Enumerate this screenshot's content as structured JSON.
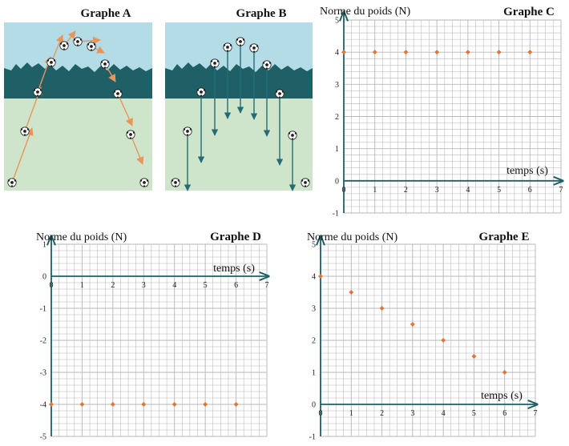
{
  "panels": {
    "a": {
      "title": "Graphe A"
    },
    "b": {
      "title": "Graphe B"
    }
  },
  "colors": {
    "sky": "#b3dce6",
    "ground": "#cfe5cb",
    "treeline": "#1f5f66",
    "axis": "#1f5f66",
    "grid": "#b7b7b7",
    "trajectory_arrow": "#e8955a",
    "weight_arrow": "#236c74",
    "marker": "#e0763d"
  },
  "icons": {
    "ball": "soccer-ball-icon"
  },
  "chart_data": [
    {
      "id": "C",
      "type": "scatter",
      "title": "Graphe C",
      "ylabel": "Norme du poids (N)",
      "xlabel": "temps (s)",
      "xlim": [
        0,
        7
      ],
      "ylim": [
        -1,
        5
      ],
      "x_ticks": [
        1,
        2,
        3,
        4,
        5,
        6,
        7
      ],
      "y_ticks": [
        -1,
        0,
        1,
        2,
        3,
        4,
        5
      ],
      "grid": true,
      "points": {
        "x": [
          0,
          1,
          2,
          3,
          4,
          5,
          6
        ],
        "y": [
          4,
          4,
          4,
          4,
          4,
          4,
          4
        ]
      }
    },
    {
      "id": "D",
      "type": "scatter",
      "title": "Graphe D",
      "ylabel": "Norme du poids (N)",
      "xlabel": "temps (s)",
      "xlim": [
        0,
        7
      ],
      "ylim": [
        -5,
        1
      ],
      "x_ticks": [
        1,
        2,
        3,
        4,
        5,
        6,
        7
      ],
      "y_ticks": [
        -5,
        -4,
        -3,
        -2,
        -1,
        0,
        1
      ],
      "grid": true,
      "points": {
        "x": [
          0,
          1,
          2,
          3,
          4,
          5,
          6
        ],
        "y": [
          -4,
          -4,
          -4,
          -4,
          -4,
          -4,
          -4
        ]
      }
    },
    {
      "id": "E",
      "type": "scatter",
      "title": "Graphe E",
      "ylabel": "Norme du poids (N)",
      "xlabel": "temps (s)",
      "xlim": [
        0,
        7
      ],
      "ylim": [
        -1,
        5
      ],
      "x_ticks": [
        1,
        2,
        3,
        4,
        5,
        6,
        7
      ],
      "y_ticks": [
        -1,
        0,
        1,
        2,
        3,
        4,
        5
      ],
      "grid": true,
      "points": {
        "x": [
          0,
          1,
          2,
          3,
          4,
          5,
          6
        ],
        "y": [
          4,
          3.5,
          3,
          2.5,
          2,
          1.5,
          1
        ]
      }
    }
  ]
}
